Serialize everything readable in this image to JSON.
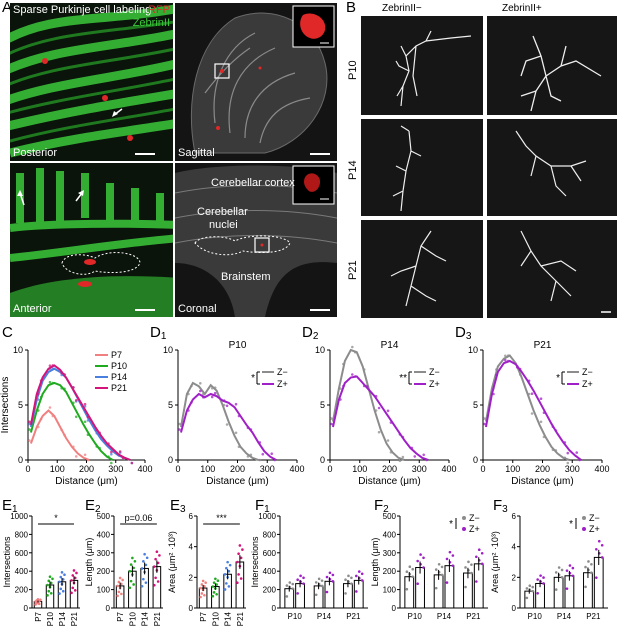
{
  "panel_A": {
    "letter": "A",
    "label_title": "Sparse Purkinje cell labeling",
    "label_rfp": "RFP",
    "label_zebrin": "ZebrinII",
    "label_posterior": "Posterior",
    "label_sagittal": "Sagittal",
    "label_anterior": "Anterior",
    "label_coronal": "Coronal",
    "label_cortex": "Cerebellar cortex",
    "label_nuclei_1": "Cerebellar",
    "label_nuclei_2": "nuclei",
    "label_brainstem": "Brainstem",
    "colors": {
      "zebrin": "#3ac93a",
      "rfp": "#e02828",
      "gray": "#8a8a8a"
    }
  },
  "panel_B": {
    "letter": "B",
    "col_minus": "ZebrinII−",
    "col_plus": "ZebrinII+",
    "rows": [
      "P10",
      "P14",
      "P21"
    ]
  },
  "panel_C": {
    "letter": "C"
  },
  "panel_D": {
    "letters": [
      "D",
      "D",
      "D"
    ],
    "subs": [
      "1",
      "2",
      "3"
    ],
    "titles": [
      "P10",
      "P14",
      "P21"
    ],
    "sig": [
      "*",
      "**",
      "*"
    ],
    "legend": [
      "Z−",
      "Z+"
    ]
  },
  "panel_E": {
    "letters": [
      "E",
      "E",
      "E"
    ],
    "subs": [
      "1",
      "2",
      "3"
    ],
    "sig": [
      "*",
      "p=0.06",
      "***"
    ]
  },
  "panel_F": {
    "letters": [
      "F",
      "F",
      "F"
    ],
    "subs": [
      "1",
      "2",
      "3"
    ],
    "sig_f2": "*",
    "sig_f3": "*",
    "legend": [
      "Z−",
      "Z+"
    ]
  },
  "chart_data": [
    {
      "id": "C",
      "type": "line",
      "xlabel": "Distance (μm)",
      "ylabel": "Intersections",
      "xlim": [
        0,
        400
      ],
      "ylim": [
        0,
        10
      ],
      "xticks": [
        0,
        100,
        200,
        300,
        400
      ],
      "yticks": [
        0,
        5,
        10
      ],
      "legend_placement": "top-right",
      "series": [
        {
          "name": "P7",
          "color": "#f08080",
          "x": [
            10,
            30,
            50,
            70,
            90,
            110,
            130,
            150,
            170,
            190,
            210
          ],
          "y": [
            1.5,
            3,
            4,
            4.5,
            4,
            3,
            2,
            1.2,
            0.6,
            0.2,
            0
          ]
        },
        {
          "name": "P10",
          "color": "#1faa1f",
          "x": [
            10,
            30,
            50,
            70,
            90,
            110,
            130,
            150,
            170,
            190,
            210,
            230,
            250,
            270,
            290
          ],
          "y": [
            2.5,
            4.5,
            6,
            6.8,
            7,
            6.8,
            6.2,
            5.2,
            4.2,
            3.2,
            2.3,
            1.5,
            0.8,
            0.3,
            0
          ]
        },
        {
          "name": "P14",
          "color": "#4a7fe0",
          "x": [
            10,
            30,
            50,
            70,
            90,
            110,
            130,
            150,
            170,
            190,
            210,
            230,
            250,
            270,
            290,
            310,
            330,
            350
          ],
          "y": [
            3,
            5.5,
            7.2,
            8,
            8.3,
            8,
            7.5,
            6.6,
            5.6,
            4.6,
            3.6,
            2.7,
            1.9,
            1.3,
            0.8,
            0.4,
            0.2,
            0
          ]
        },
        {
          "name": "P21",
          "color": "#d4147a",
          "x": [
            10,
            30,
            50,
            70,
            90,
            110,
            130,
            150,
            170,
            190,
            210,
            230,
            250,
            270,
            290,
            310,
            330,
            350
          ],
          "y": [
            3.2,
            6,
            7.5,
            8.3,
            8.6,
            8.2,
            7.5,
            6.6,
            5.7,
            4.8,
            3.9,
            3,
            2.2,
            1.5,
            1,
            0.5,
            0.2,
            0
          ]
        }
      ]
    },
    {
      "id": "D1",
      "type": "line",
      "title": "P10",
      "xlabel": "Distance (μm)",
      "xlim": [
        0,
        400
      ],
      "ylim": [
        0,
        10
      ],
      "xticks": [
        0,
        100,
        200,
        300,
        400
      ],
      "yticks": [
        0,
        5,
        10
      ],
      "series": [
        {
          "name": "Z−",
          "color": "#8c8c8c",
          "x": [
            10,
            30,
            50,
            70,
            90,
            110,
            130,
            150,
            170,
            190,
            210,
            230,
            250,
            270
          ],
          "y": [
            3,
            6,
            7,
            6.7,
            6,
            6.8,
            6.3,
            5,
            3.5,
            2.2,
            1.2,
            0.6,
            0.2,
            0
          ]
        },
        {
          "name": "Z+",
          "color": "#a020c8",
          "x": [
            10,
            30,
            50,
            70,
            90,
            110,
            130,
            150,
            170,
            190,
            210,
            230,
            250,
            270,
            290,
            310,
            330
          ],
          "y": [
            2.5,
            4.5,
            5.5,
            6,
            5.7,
            6,
            5.8,
            5.4,
            5.2,
            4.8,
            4,
            3.2,
            2.5,
            1.6,
            0.8,
            0.3,
            0
          ]
        }
      ]
    },
    {
      "id": "D2",
      "type": "line",
      "title": "P14",
      "xlabel": "Distance (μm)",
      "xlim": [
        0,
        400
      ],
      "ylim": [
        0,
        10
      ],
      "xticks": [
        0,
        100,
        200,
        300,
        400
      ],
      "yticks": [
        0,
        5,
        10
      ],
      "series": [
        {
          "name": "Z−",
          "color": "#8c8c8c",
          "x": [
            10,
            30,
            50,
            70,
            90,
            110,
            130,
            150,
            170,
            190,
            210,
            230,
            250
          ],
          "y": [
            3.5,
            6.5,
            9,
            10,
            9.8,
            8.5,
            6.5,
            4.5,
            2.8,
            1.5,
            0.7,
            0.2,
            0
          ]
        },
        {
          "name": "Z+",
          "color": "#a020c8",
          "x": [
            10,
            30,
            50,
            70,
            90,
            110,
            130,
            150,
            170,
            190,
            210,
            230,
            250,
            270,
            290,
            310,
            330
          ],
          "y": [
            3,
            5.5,
            7,
            7.5,
            7.6,
            7,
            6.4,
            5.8,
            5,
            4.2,
            3.4,
            2.6,
            1.8,
            1.1,
            0.6,
            0.2,
            0
          ]
        }
      ]
    },
    {
      "id": "D3",
      "type": "line",
      "title": "P21",
      "xlabel": "Distance (μm)",
      "xlim": [
        0,
        400
      ],
      "ylim": [
        0,
        10
      ],
      "xticks": [
        0,
        100,
        200,
        300,
        400
      ],
      "yticks": [
        0,
        5,
        10
      ],
      "series": [
        {
          "name": "Z−",
          "color": "#8c8c8c",
          "x": [
            10,
            30,
            50,
            70,
            90,
            110,
            130,
            150,
            170,
            190,
            210,
            230,
            250,
            270,
            290
          ],
          "y": [
            3.5,
            6.5,
            8.5,
            9.2,
            9.5,
            8.8,
            7.5,
            6,
            4.5,
            3.2,
            2.1,
            1.2,
            0.6,
            0.2,
            0
          ]
        },
        {
          "name": "Z+",
          "color": "#a020c8",
          "x": [
            10,
            30,
            50,
            70,
            90,
            110,
            130,
            150,
            170,
            190,
            210,
            230,
            250,
            270,
            290,
            310,
            330
          ],
          "y": [
            3,
            6,
            8,
            8.8,
            9,
            8.7,
            8,
            7.2,
            6.3,
            5.3,
            4.3,
            3.3,
            2.4,
            1.6,
            0.9,
            0.4,
            0
          ]
        }
      ]
    },
    {
      "id": "E1",
      "type": "bar",
      "ylabel": "Intersections",
      "categories": [
        "P7",
        "P10",
        "P14",
        "P21"
      ],
      "values": [
        70,
        250,
        285,
        300
      ],
      "ylim": [
        0,
        1000
      ],
      "yticks": [
        0,
        200,
        400,
        600,
        800,
        1000
      ],
      "colors": [
        "#f08080",
        "#1faa1f",
        "#4a7fe0",
        "#d4147a"
      ]
    },
    {
      "id": "E2",
      "type": "bar",
      "ylabel": "Length (μm)",
      "categories": [
        "P7",
        "P10",
        "P14",
        "P21"
      ],
      "values": [
        120,
        200,
        215,
        225
      ],
      "ylim": [
        0,
        500
      ],
      "yticks": [
        0,
        100,
        200,
        300,
        400,
        500
      ],
      "colors": [
        "#f08080",
        "#1faa1f",
        "#4a7fe0",
        "#d4147a"
      ]
    },
    {
      "id": "E3",
      "type": "bar",
      "ylabel": "Area (μm² ·10³)",
      "categories": [
        "P7",
        "P10",
        "P14",
        "P21"
      ],
      "values": [
        1.3,
        1.4,
        2.2,
        3.0
      ],
      "ylim": [
        0,
        6
      ],
      "yticks": [
        0,
        2,
        4,
        6
      ],
      "colors": [
        "#f08080",
        "#1faa1f",
        "#4a7fe0",
        "#d4147a"
      ]
    },
    {
      "id": "F1",
      "type": "bar",
      "ylabel": "Intersections",
      "categories": [
        "P10",
        "P14",
        "P21"
      ],
      "series": [
        {
          "name": "Z−",
          "values": [
            210,
            240,
            265
          ]
        },
        {
          "name": "Z+",
          "values": [
            265,
            290,
            300
          ]
        }
      ],
      "ylim": [
        0,
        1000
      ],
      "yticks": [
        0,
        200,
        400,
        600,
        800,
        1000
      ]
    },
    {
      "id": "F2",
      "type": "bar",
      "ylabel": "Length (μm)",
      "categories": [
        "P10",
        "P14",
        "P21"
      ],
      "series": [
        {
          "name": "Z−",
          "values": [
            170,
            180,
            190
          ]
        },
        {
          "name": "Z+",
          "values": [
            220,
            230,
            240
          ]
        }
      ],
      "ylim": [
        0,
        500
      ],
      "yticks": [
        0,
        100,
        200,
        300,
        400,
        500
      ]
    },
    {
      "id": "F3",
      "type": "bar",
      "ylabel": "Area (μm² ·10³)",
      "categories": [
        "P10",
        "P14",
        "P21"
      ],
      "series": [
        {
          "name": "Z−",
          "values": [
            1.1,
            2.0,
            2.3
          ]
        },
        {
          "name": "Z+",
          "values": [
            1.6,
            2.1,
            3.3
          ]
        }
      ],
      "ylim": [
        0,
        6
      ],
      "yticks": [
        0,
        2,
        4,
        6
      ]
    }
  ]
}
